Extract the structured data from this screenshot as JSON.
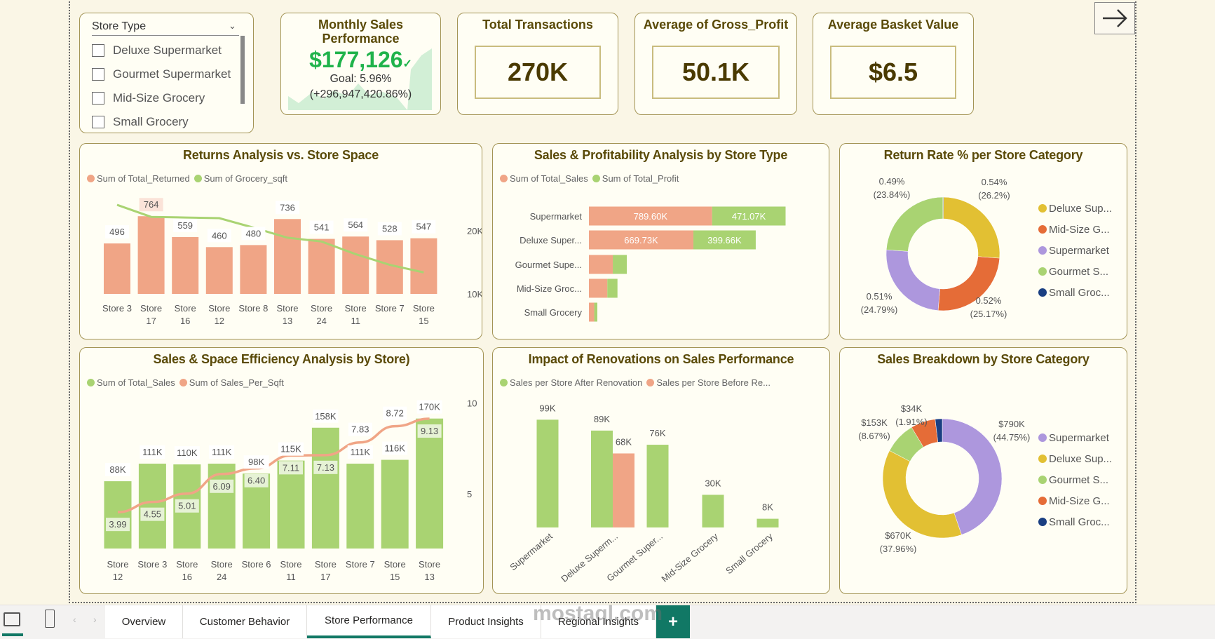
{
  "colors": {
    "salmon": "#f0a586",
    "green": "#a9d372",
    "yellow": "#e2c033",
    "orange": "#e56c37",
    "purple": "#ad97dd",
    "navy": "#1a3f82",
    "title": "#5a4a08",
    "accent": "#117865"
  },
  "slicer": {
    "title": "Store Type",
    "items": [
      "Deluxe Supermarket",
      "Gourmet Supermarket",
      "Mid-Size Grocery",
      "Small Grocery"
    ]
  },
  "kpis": {
    "monthly": {
      "title_line1": "Monthly Sales",
      "title_line2": "Performance",
      "value": "$177,126",
      "check": "✓",
      "goal": "Goal: 5.96%",
      "change": "(+296,947,420.86%)"
    },
    "transactions": {
      "title": "Total Transactions",
      "value": "270K"
    },
    "gross_profit": {
      "title": "Average of Gross_Profit",
      "value": "50.1K"
    },
    "basket": {
      "title": "Average Basket Value",
      "value": "$6.5"
    }
  },
  "nav": {
    "next_icon": "arrow-right-icon"
  },
  "chart_data": [
    {
      "id": "returns",
      "type": "bar+line",
      "title": "Returns Analysis vs. Store Space",
      "legend": [
        "Sum of Total_Returned",
        "Sum of Grocery_sqft"
      ],
      "categories": [
        "Store 3",
        "Store 17",
        "Store 16",
        "Store 12",
        "Store 8",
        "Store 13",
        "Store 24",
        "Store 11",
        "Store 7",
        "Store 15"
      ],
      "bar_values": [
        496,
        764,
        559,
        460,
        480,
        736,
        541,
        564,
        528,
        547
      ],
      "bar_labels": [
        "496",
        "764",
        "559",
        "460",
        "480",
        "736",
        "541",
        "564",
        "528",
        "547"
      ],
      "line_values": [
        24100,
        22200,
        22100,
        22000,
        20500,
        18900,
        18300,
        16300,
        14600,
        13400
      ],
      "right_ticks": [
        "10K",
        "20K"
      ],
      "right_tick_values": [
        10000,
        20000
      ]
    },
    {
      "id": "sales_profit",
      "type": "stacked-bar-horizontal",
      "title": "Sales & Profitability Analysis by Store Type",
      "legend": [
        "Sum of Total_Sales",
        "Sum of Total_Profit"
      ],
      "categories": [
        "Supermarket",
        "Deluxe Super...",
        "Gourmet Supe...",
        "Mid-Size Groc...",
        "Small Grocery"
      ],
      "sales": [
        789600,
        669730,
        153000,
        118000,
        34000
      ],
      "profit": [
        471070,
        399660,
        90000,
        65000,
        20000
      ],
      "sales_labels": [
        "789.60K",
        "669.73K",
        "",
        "",
        ""
      ],
      "profit_labels": [
        "471.07K",
        "399.66K",
        "",
        "",
        ""
      ]
    },
    {
      "id": "return_rate",
      "type": "donut",
      "title": "Return Rate % per Store Category",
      "legend": [
        "Deluxe Sup...",
        "Mid-Size G...",
        "Supermarket",
        "Gourmet S...",
        "Small Groc..."
      ],
      "slices": [
        {
          "name": "Deluxe Supermarket",
          "share": 26.2,
          "label1": "0.54%",
          "label2": "(26.2%)",
          "color": "#e2c033"
        },
        {
          "name": "Mid-Size Grocery",
          "share": 25.17,
          "label1": "0.52%",
          "label2": "(25.17%)",
          "color": "#e56c37"
        },
        {
          "name": "Supermarket",
          "share": 24.79,
          "label1": "0.51%",
          "label2": "(24.79%)",
          "color": "#ad97dd"
        },
        {
          "name": "Gourmet Supermarket",
          "share": 23.84,
          "label1": "0.49%",
          "label2": "(23.84%)",
          "color": "#a9d372"
        },
        {
          "name": "Small Grocery",
          "share": 0,
          "label1": "",
          "label2": "",
          "color": "#1a3f82"
        }
      ]
    },
    {
      "id": "space_eff",
      "type": "bar+line",
      "title": "Sales & Space Efficiency Analysis by Store)",
      "legend": [
        "Sum of Total_Sales",
        "Sum of Sales_Per_Sqft"
      ],
      "categories": [
        "Store 12",
        "Store 3",
        "Store 16",
        "Store 24",
        "Store 6",
        "Store 11",
        "Store 17",
        "Store 7",
        "Store 15",
        "Store 13"
      ],
      "bar_values": [
        88,
        111,
        110,
        111,
        98,
        115,
        158,
        111,
        116,
        170
      ],
      "bar_labels": [
        "88K",
        "111K",
        "110K",
        "111K",
        "98K",
        "115K",
        "158K",
        "111K",
        "116K",
        "170K"
      ],
      "line_values": [
        3.99,
        4.55,
        5.01,
        6.09,
        6.4,
        7.11,
        7.13,
        7.83,
        8.72,
        9.13
      ],
      "line_labels": [
        "3.99",
        "4.55",
        "5.01",
        "6.09",
        "6.40",
        "7.11",
        "7.13",
        "7.83",
        "8.72",
        "9.13"
      ],
      "right_ticks": [
        "5",
        "10"
      ],
      "right_tick_values": [
        5,
        10
      ]
    },
    {
      "id": "renovation",
      "type": "clustered-bar",
      "title": "Impact of Renovations on Sales Performance",
      "legend": [
        "Sales per Store After Renovation",
        "Sales per Store Before Re..."
      ],
      "categories": [
        "Supermarket",
        "Deluxe Superm...",
        "Gourmet Super...",
        "Mid-Size Grocery",
        "Small Grocery"
      ],
      "after": [
        99,
        89,
        76,
        30,
        8
      ],
      "before": [
        null,
        68,
        null,
        null,
        null
      ],
      "after_labels": [
        "99K",
        "89K",
        "76K",
        "30K",
        "8K"
      ],
      "before_labels": [
        "",
        "68K",
        "",
        "",
        ""
      ]
    },
    {
      "id": "sales_breakdown",
      "type": "donut",
      "title": "Sales Breakdown by Store Category",
      "legend": [
        "Supermarket",
        "Deluxe Sup...",
        "Gourmet S...",
        "Mid-Size G...",
        "Small Groc..."
      ],
      "slices": [
        {
          "name": "Supermarket",
          "share": 44.75,
          "label1": "$790K",
          "label2": "(44.75%)",
          "color": "#ad97dd"
        },
        {
          "name": "Deluxe Supermarket",
          "share": 37.96,
          "label1": "$670K",
          "label2": "(37.96%)",
          "color": "#e2c033"
        },
        {
          "name": "Gourmet Supermarket",
          "share": 8.67,
          "label1": "$153K",
          "label2": "(8.67%)",
          "color": "#a9d372"
        },
        {
          "name": "Mid-Size Grocery",
          "share": 6.71,
          "label1": "",
          "label2": "",
          "color": "#e56c37"
        },
        {
          "name": "Small Grocery",
          "share": 1.91,
          "label1": "$34K",
          "label2": "(1.91%)",
          "color": "#1a3f82"
        }
      ]
    }
  ],
  "tabs": {
    "items": [
      "Overview",
      "Customer Behavior",
      "Store Performance",
      "Product Insights",
      "Regional Insights"
    ],
    "active": "Store Performance",
    "add": "+"
  },
  "watermark": {
    "text": "mostaql.com"
  }
}
